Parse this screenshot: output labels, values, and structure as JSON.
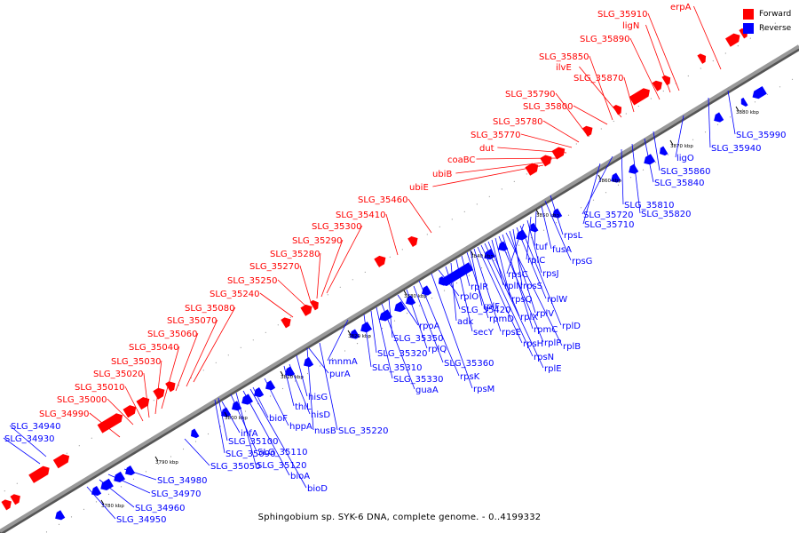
{
  "caption": "Sphingobium sp. SYK-6 DNA, complete genome. - 0..4199332",
  "legend": [
    {
      "label": "Forward",
      "color": "#ff0000"
    },
    {
      "label": "Reverse",
      "color": "#0000ff"
    }
  ],
  "colors": {
    "forward": "#ff0000",
    "reverse": "#0000ff",
    "backbone": "#999999",
    "tick": "#000000"
  },
  "ticks": [
    "3780 kbp",
    "3790 kbp",
    "3800 kbp",
    "3810 kbp",
    "3820 kbp",
    "3830 kbp",
    "3840 kbp",
    "3850 kbp",
    "3860 kbp",
    "3870 kbp",
    "3880 kbp"
  ],
  "forward_genes": [
    "SLG_34990",
    "SLG_35000",
    "SLG_35010",
    "SLG_35020",
    "SLG_35030",
    "SLG_35040",
    "SLG_35060",
    "SLG_35070",
    "SLG_35080",
    "SLG_35240",
    "SLG_35250",
    "SLG_35270",
    "SLG_35280",
    "SLG_35290",
    "SLG_35300",
    "SLG_35410",
    "SLG_35460",
    "ubiE",
    "ubiB",
    "coaBC",
    "dut",
    "SLG_35770",
    "SLG_35780",
    "SLG_35800",
    "SLG_35790",
    "SLG_35870",
    "ilvE",
    "SLG_35850",
    "SLG_35890",
    "ligN",
    "SLG_35910",
    "erpA"
  ],
  "reverse_genes": [
    "SLG_34930",
    "SLG_34940",
    "SLG_34950",
    "SLG_34960",
    "SLG_34970",
    "SLG_34980",
    "SLG_35050",
    "SLG_35090",
    "SLG_35100",
    "SLG_35110",
    "SLG_35120",
    "infA",
    "bioF",
    "bioA",
    "bioD",
    "hppA",
    "thiL",
    "hisD",
    "hisG",
    "nusB",
    "SLG_35220",
    "purA",
    "mnmA",
    "SLG_35310",
    "SLG_35320",
    "SLG_35330",
    "guaA",
    "SLG_35350",
    "rpoA",
    "rplQ",
    "SLG_35360",
    "rpsK",
    "rpsM",
    "rplO",
    "SLG_35420",
    "adk",
    "secY",
    "rplR",
    "rpmD",
    "rplF",
    "rpsE",
    "rpsH",
    "rpsN",
    "rplE",
    "rplX",
    "rplN",
    "rpsQ",
    "rplP",
    "rpmC",
    "rplB",
    "rplV",
    "rpsS",
    "rplW",
    "rplD",
    "rpsC",
    "rpsJ",
    "rplC",
    "tuf",
    "fusA",
    "rpsG",
    "rpsL",
    "SLG_35710",
    "SLG_35720",
    "SLG_35810",
    "SLG_35820",
    "SLG_35840",
    "SLG_35860",
    "ligO",
    "SLG_35940",
    "SLG_35990"
  ]
}
